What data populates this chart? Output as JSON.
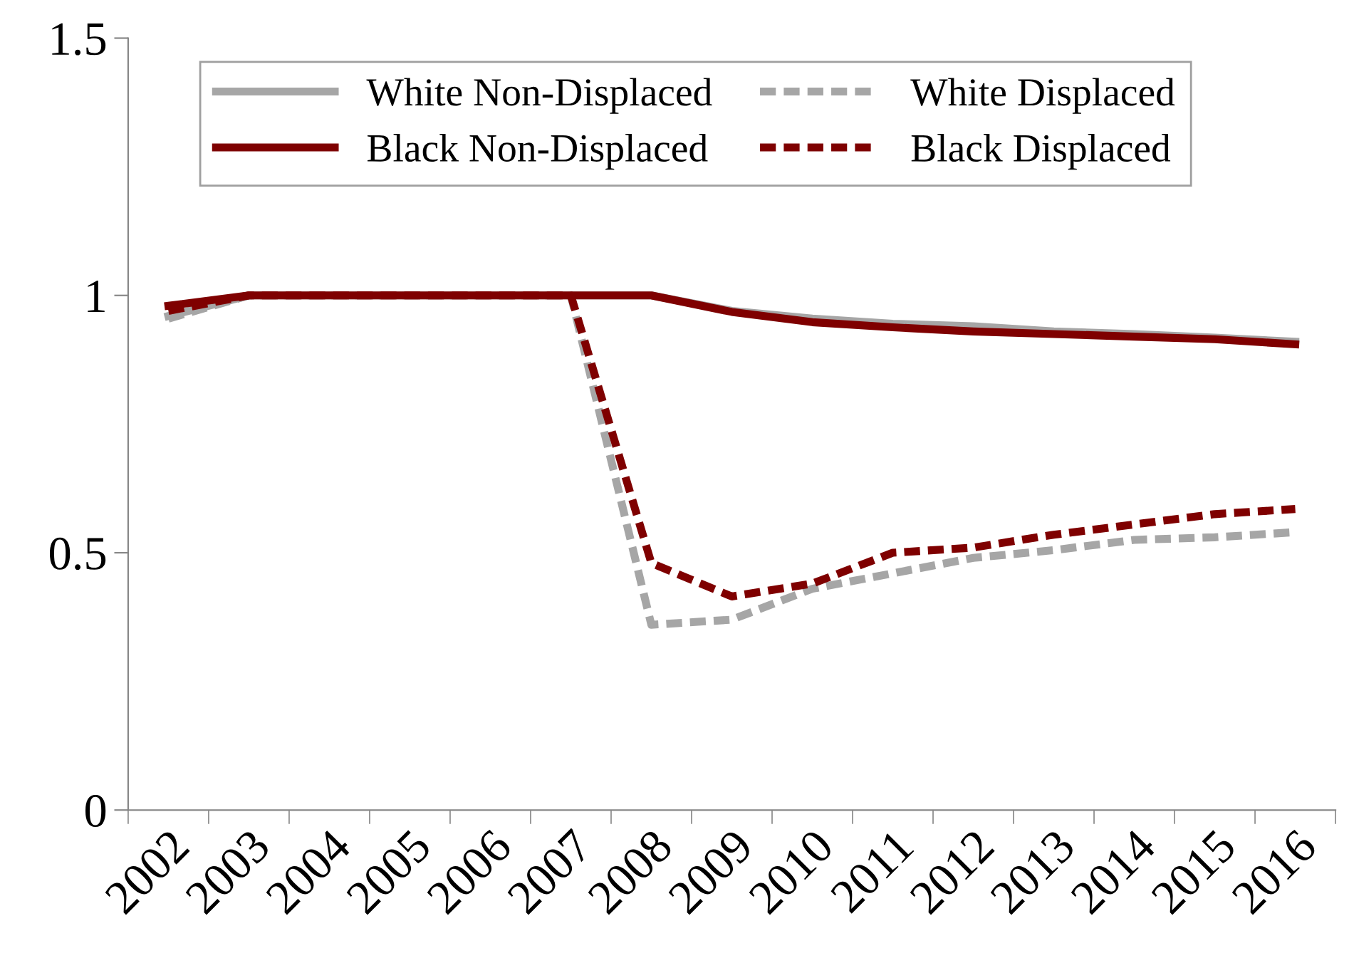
{
  "chart_data": {
    "type": "line",
    "categories": [
      "2002",
      "2003",
      "2004",
      "2005",
      "2006",
      "2007",
      "2008",
      "2009",
      "2010",
      "2011",
      "2012",
      "2013",
      "2014",
      "2015",
      "2016"
    ],
    "series": [
      {
        "name": "White Non-Displaced",
        "color": "#a6a6a6",
        "line_style": "solid",
        "values": [
          0.96,
          1.0,
          1.0,
          1.0,
          1.0,
          1.0,
          1.0,
          0.97,
          0.955,
          0.945,
          0.94,
          0.93,
          0.925,
          0.918,
          0.91
        ]
      },
      {
        "name": "White Displaced",
        "color": "#a6a6a6",
        "line_style": "dashed",
        "values": [
          0.955,
          1.0,
          1.0,
          1.0,
          1.0,
          1.0,
          0.36,
          0.37,
          0.43,
          0.46,
          0.49,
          0.505,
          0.525,
          0.53,
          0.54
        ]
      },
      {
        "name": "Black Non-Displaced",
        "color": "#7f0000",
        "line_style": "solid",
        "values": [
          0.98,
          1.0,
          1.0,
          1.0,
          1.0,
          1.0,
          1.0,
          0.968,
          0.948,
          0.938,
          0.93,
          0.925,
          0.92,
          0.915,
          0.905
        ]
      },
      {
        "name": "Black Displaced",
        "color": "#7f0000",
        "line_style": "dashed",
        "values": [
          0.97,
          1.0,
          1.0,
          1.0,
          1.0,
          1.0,
          0.48,
          0.415,
          0.44,
          0.5,
          0.51,
          0.535,
          0.555,
          0.575,
          0.585
        ]
      }
    ],
    "ylim": [
      0,
      1.5
    ],
    "yticks": [
      0,
      0.5,
      1,
      1.5
    ],
    "grid": false,
    "legend": "top",
    "marker": "none"
  }
}
